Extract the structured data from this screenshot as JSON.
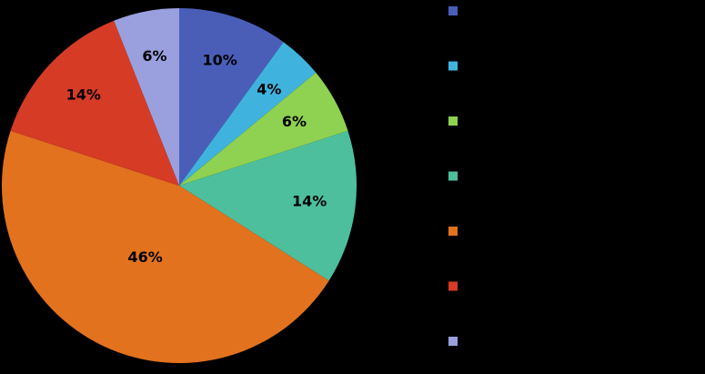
{
  "chart_data": {
    "type": "pie",
    "values": [
      10,
      4,
      6,
      14,
      46,
      14,
      6
    ],
    "value_labels": [
      "10%",
      "4%",
      "6%",
      "14%",
      "46%",
      "14%",
      "6%"
    ],
    "colors": [
      "#4a5eb8",
      "#3fb3dd",
      "#8fd150",
      "#4dbf9c",
      "#e2721e",
      "#d63b25",
      "#9aa0de"
    ],
    "legend": "right"
  }
}
